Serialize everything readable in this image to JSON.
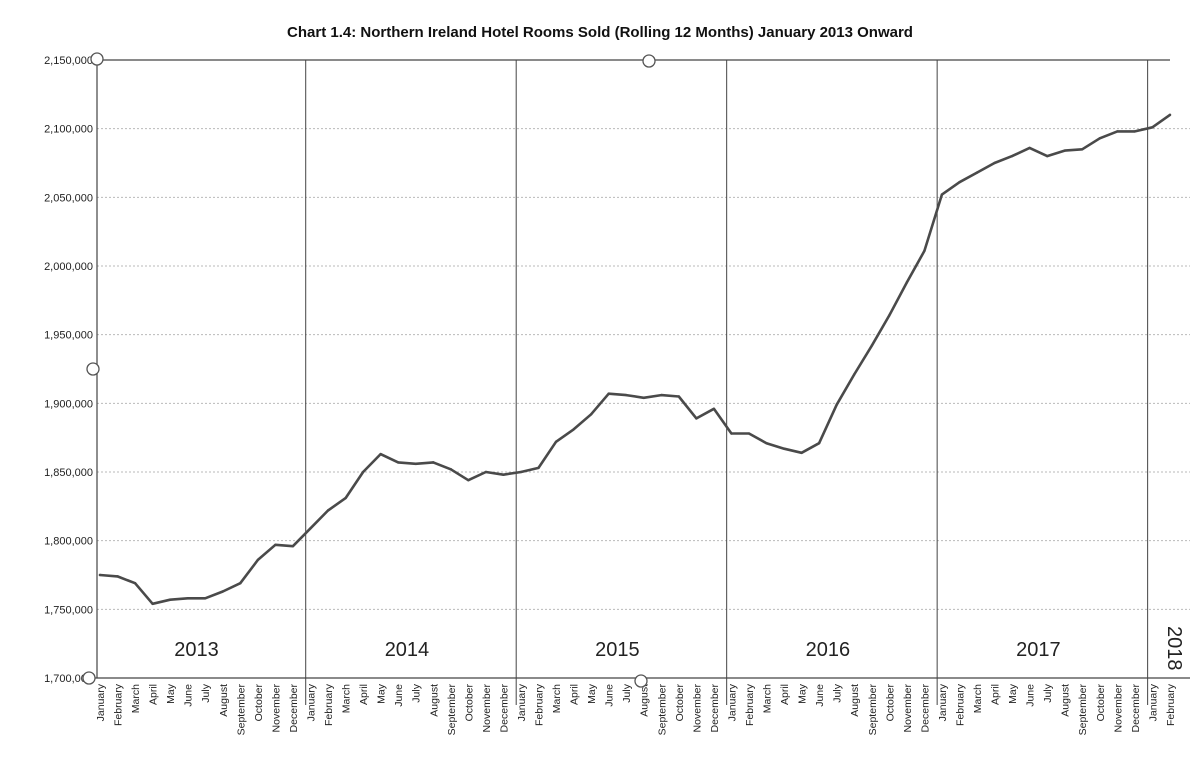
{
  "chart_data": {
    "type": "line",
    "title": "Chart 1.4: Northern Ireland Hotel Rooms Sold (Rolling 12 Months) January 2013 Onward",
    "xlabel": "",
    "ylabel": "",
    "ylim": [
      1700000,
      2150000
    ],
    "yticks": [
      "1,700,000",
      "1,750,000",
      "1,800,000",
      "1,850,000",
      "1,900,000",
      "1,950,000",
      "2,000,000",
      "2,050,000",
      "2,100,000",
      "2,150,000"
    ],
    "years": [
      "2013",
      "2014",
      "2015",
      "2016",
      "2017",
      "2018"
    ],
    "categories": [
      "January",
      "February",
      "March",
      "April",
      "May",
      "June",
      "July",
      "August",
      "September",
      "October",
      "November",
      "December",
      "January",
      "February",
      "March",
      "April",
      "May",
      "June",
      "July",
      "August",
      "September",
      "October",
      "November",
      "December",
      "January",
      "February",
      "March",
      "April",
      "May",
      "June",
      "July",
      "August",
      "September",
      "October",
      "November",
      "December",
      "January",
      "February",
      "March",
      "April",
      "May",
      "June",
      "July",
      "August",
      "September",
      "October",
      "November",
      "December",
      "January",
      "February",
      "March",
      "April",
      "May",
      "June",
      "July",
      "August",
      "September",
      "October",
      "November",
      "December",
      "January",
      "February"
    ],
    "series": [
      {
        "name": "",
        "values": [
          1775000,
          1774000,
          1769000,
          1754000,
          1757000,
          1758000,
          1758000,
          1763000,
          1769000,
          1786000,
          1797000,
          1796000,
          1809000,
          1822000,
          1831000,
          1850000,
          1863000,
          1857000,
          1856000,
          1857000,
          1852000,
          1844000,
          1850000,
          1848000,
          1850000,
          1853000,
          1872000,
          1881000,
          1892000,
          1907000,
          1906000,
          1904000,
          1906000,
          1905000,
          1889000,
          1896000,
          1878000,
          1878000,
          1871000,
          1867000,
          1864000,
          1871000,
          1899000,
          1921000,
          1942000,
          1964000,
          1988000,
          2011000,
          2052000,
          2061000,
          2068000,
          2075000,
          2080000,
          2086000,
          2080000,
          2084000,
          2085000,
          2093000,
          2098000,
          2098000,
          2101000,
          2110000
        ]
      }
    ],
    "grid": true,
    "legend": "none",
    "line_color": "#4a4a4a"
  }
}
